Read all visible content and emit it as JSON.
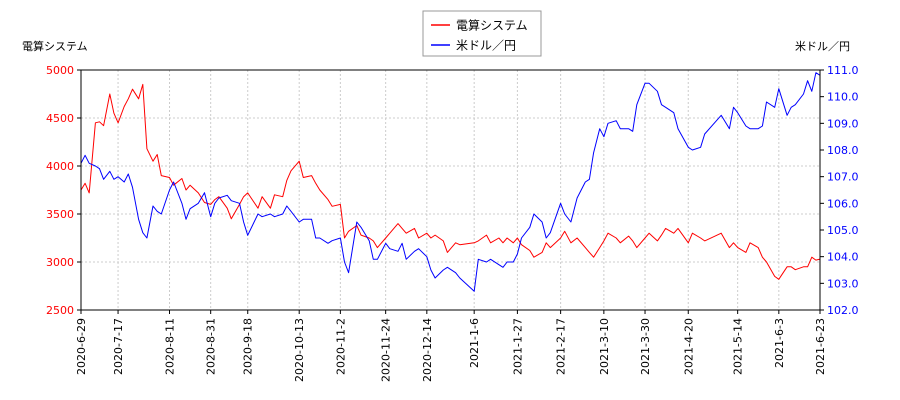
{
  "chart_data": {
    "type": "line",
    "legend_position": "top-center",
    "grid": true,
    "left_axis": {
      "label": "電算システム",
      "range": [
        2500,
        5000
      ],
      "ticks": [
        "2500",
        "3000",
        "3500",
        "4000",
        "4500",
        "5000"
      ],
      "color": "#ff0000"
    },
    "right_axis": {
      "label": "米ドル／円",
      "range": [
        102.0,
        111.0
      ],
      "ticks": [
        "102.0",
        "103.0",
        "104.0",
        "105.0",
        "106.0",
        "107.0",
        "108.0",
        "109.0",
        "110.0",
        "111.0"
      ],
      "color": "#0000ff"
    },
    "x_axis": {
      "range": [
        "2020-6-29",
        "2021-6-23"
      ],
      "ticks": [
        "2020-6-29",
        "2020-7-17",
        "2020-8-11",
        "2020-8-31",
        "2020-9-18",
        "2020-10-13",
        "2020-11-2",
        "2020-11-24",
        "2020-12-14",
        "2021-1-6",
        "2021-1-27",
        "2021-2-17",
        "2021-3-10",
        "2021-3-30",
        "2021-4-20",
        "2021-5-14",
        "2021-6-3",
        "2021-6-23"
      ]
    },
    "series": [
      {
        "name": "電算システム",
        "axis": "left",
        "color": "#ff0000",
        "points": [
          [
            "2020-6-29",
            3750
          ],
          [
            "2020-7-1",
            3820
          ],
          [
            "2020-7-3",
            3720
          ],
          [
            "2020-7-6",
            4450
          ],
          [
            "2020-7-8",
            4460
          ],
          [
            "2020-7-10",
            4420
          ],
          [
            "2020-7-13",
            4750
          ],
          [
            "2020-7-15",
            4550
          ],
          [
            "2020-7-17",
            4450
          ],
          [
            "2020-7-20",
            4620
          ],
          [
            "2020-7-22",
            4700
          ],
          [
            "2020-7-24",
            4800
          ],
          [
            "2020-7-27",
            4700
          ],
          [
            "2020-7-29",
            4850
          ],
          [
            "2020-7-31",
            4180
          ],
          [
            "2020-8-3",
            4050
          ],
          [
            "2020-8-5",
            4120
          ],
          [
            "2020-8-7",
            3900
          ],
          [
            "2020-8-11",
            3880
          ],
          [
            "2020-8-13",
            3800
          ],
          [
            "2020-8-17",
            3870
          ],
          [
            "2020-8-19",
            3750
          ],
          [
            "2020-8-21",
            3800
          ],
          [
            "2020-8-25",
            3720
          ],
          [
            "2020-8-28",
            3620
          ],
          [
            "2020-8-31",
            3600
          ],
          [
            "2020-9-2",
            3650
          ],
          [
            "2020-9-4",
            3680
          ],
          [
            "2020-9-8",
            3560
          ],
          [
            "2020-9-10",
            3450
          ],
          [
            "2020-9-14",
            3600
          ],
          [
            "2020-9-16",
            3680
          ],
          [
            "2020-9-18",
            3720
          ],
          [
            "2020-9-23",
            3560
          ],
          [
            "2020-9-25",
            3680
          ],
          [
            "2020-9-29",
            3560
          ],
          [
            "2020-10-1",
            3700
          ],
          [
            "2020-10-5",
            3680
          ],
          [
            "2020-10-7",
            3850
          ],
          [
            "2020-10-9",
            3950
          ],
          [
            "2020-10-13",
            4050
          ],
          [
            "2020-10-15",
            3880
          ],
          [
            "2020-10-19",
            3900
          ],
          [
            "2020-10-21",
            3820
          ],
          [
            "2020-10-23",
            3750
          ],
          [
            "2020-10-27",
            3650
          ],
          [
            "2020-10-29",
            3580
          ],
          [
            "2020-11-2",
            3600
          ],
          [
            "2020-11-4",
            3250
          ],
          [
            "2020-11-6",
            3320
          ],
          [
            "2020-11-10",
            3380
          ],
          [
            "2020-11-12",
            3280
          ],
          [
            "2020-11-16",
            3250
          ],
          [
            "2020-11-18",
            3220
          ],
          [
            "2020-11-20",
            3150
          ],
          [
            "2020-11-24",
            3250
          ],
          [
            "2020-11-26",
            3300
          ],
          [
            "2020-11-30",
            3400
          ],
          [
            "2020-12-2",
            3350
          ],
          [
            "2020-12-4",
            3300
          ],
          [
            "2020-12-8",
            3350
          ],
          [
            "2020-12-10",
            3250
          ],
          [
            "2020-12-14",
            3300
          ],
          [
            "2020-12-16",
            3250
          ],
          [
            "2020-12-18",
            3280
          ],
          [
            "2020-12-22",
            3220
          ],
          [
            "2020-12-24",
            3100
          ],
          [
            "2020-12-28",
            3200
          ],
          [
            "2020-12-30",
            3180
          ],
          [
            "2021-1-6",
            3200
          ],
          [
            "2021-1-8",
            3220
          ],
          [
            "2021-1-12",
            3280
          ],
          [
            "2021-1-14",
            3200
          ],
          [
            "2021-1-18",
            3250
          ],
          [
            "2021-1-20",
            3200
          ],
          [
            "2021-1-22",
            3250
          ],
          [
            "2021-1-25",
            3200
          ],
          [
            "2021-1-27",
            3250
          ],
          [
            "2021-1-29",
            3180
          ],
          [
            "2021-2-2",
            3120
          ],
          [
            "2021-2-4",
            3050
          ],
          [
            "2021-2-8",
            3100
          ],
          [
            "2021-2-10",
            3200
          ],
          [
            "2021-2-12",
            3150
          ],
          [
            "2021-2-17",
            3250
          ],
          [
            "2021-2-19",
            3320
          ],
          [
            "2021-2-22",
            3200
          ],
          [
            "2021-2-25",
            3250
          ],
          [
            "2021-3-1",
            3150
          ],
          [
            "2021-3-3",
            3100
          ],
          [
            "2021-3-5",
            3050
          ],
          [
            "2021-3-8",
            3150
          ],
          [
            "2021-3-10",
            3220
          ],
          [
            "2021-3-12",
            3300
          ],
          [
            "2021-3-16",
            3250
          ],
          [
            "2021-3-18",
            3200
          ],
          [
            "2021-3-22",
            3270
          ],
          [
            "2021-3-24",
            3220
          ],
          [
            "2021-3-26",
            3150
          ],
          [
            "2021-3-30",
            3250
          ],
          [
            "2021-4-1",
            3300
          ],
          [
            "2021-4-5",
            3220
          ],
          [
            "2021-4-7",
            3280
          ],
          [
            "2021-4-9",
            3350
          ],
          [
            "2021-4-13",
            3300
          ],
          [
            "2021-4-15",
            3350
          ],
          [
            "2021-4-20",
            3200
          ],
          [
            "2021-4-22",
            3300
          ],
          [
            "2021-4-26",
            3250
          ],
          [
            "2021-4-28",
            3220
          ],
          [
            "2021-5-6",
            3300
          ],
          [
            "2021-5-10",
            3150
          ],
          [
            "2021-5-12",
            3200
          ],
          [
            "2021-5-14",
            3150
          ],
          [
            "2021-5-18",
            3100
          ],
          [
            "2021-5-20",
            3200
          ],
          [
            "2021-5-24",
            3150
          ],
          [
            "2021-5-26",
            3050
          ],
          [
            "2021-5-28",
            3000
          ],
          [
            "2021-6-1",
            2850
          ],
          [
            "2021-6-3",
            2820
          ],
          [
            "2021-6-7",
            2950
          ],
          [
            "2021-6-9",
            2950
          ],
          [
            "2021-6-11",
            2920
          ],
          [
            "2021-6-15",
            2950
          ],
          [
            "2021-6-17",
            2950
          ],
          [
            "2021-6-19",
            3050
          ],
          [
            "2021-6-21",
            3020
          ],
          [
            "2021-6-23",
            3030
          ]
        ]
      },
      {
        "name": "米ドル／円",
        "axis": "right",
        "color": "#0000ff",
        "points": [
          [
            "2020-6-29",
            107.5
          ],
          [
            "2020-7-1",
            107.8
          ],
          [
            "2020-7-3",
            107.5
          ],
          [
            "2020-7-6",
            107.4
          ],
          [
            "2020-7-8",
            107.3
          ],
          [
            "2020-7-10",
            106.9
          ],
          [
            "2020-7-13",
            107.2
          ],
          [
            "2020-7-15",
            106.9
          ],
          [
            "2020-7-17",
            107.0
          ],
          [
            "2020-7-20",
            106.8
          ],
          [
            "2020-7-22",
            107.1
          ],
          [
            "2020-7-24",
            106.6
          ],
          [
            "2020-7-27",
            105.4
          ],
          [
            "2020-7-29",
            104.9
          ],
          [
            "2020-7-31",
            104.7
          ],
          [
            "2020-8-3",
            105.9
          ],
          [
            "2020-8-5",
            105.7
          ],
          [
            "2020-8-7",
            105.6
          ],
          [
            "2020-8-11",
            106.5
          ],
          [
            "2020-8-13",
            106.8
          ],
          [
            "2020-8-17",
            106.0
          ],
          [
            "2020-8-19",
            105.4
          ],
          [
            "2020-8-21",
            105.8
          ],
          [
            "2020-8-25",
            106.0
          ],
          [
            "2020-8-28",
            106.4
          ],
          [
            "2020-8-31",
            105.5
          ],
          [
            "2020-9-2",
            106.0
          ],
          [
            "2020-9-4",
            106.2
          ],
          [
            "2020-9-8",
            106.3
          ],
          [
            "2020-9-10",
            106.1
          ],
          [
            "2020-9-14",
            106.0
          ],
          [
            "2020-9-16",
            105.3
          ],
          [
            "2020-9-18",
            104.8
          ],
          [
            "2020-9-23",
            105.6
          ],
          [
            "2020-9-25",
            105.5
          ],
          [
            "2020-9-29",
            105.6
          ],
          [
            "2020-10-1",
            105.5
          ],
          [
            "2020-10-5",
            105.6
          ],
          [
            "2020-10-7",
            105.9
          ],
          [
            "2020-10-9",
            105.7
          ],
          [
            "2020-10-13",
            105.3
          ],
          [
            "2020-10-15",
            105.4
          ],
          [
            "2020-10-19",
            105.4
          ],
          [
            "2020-10-21",
            104.7
          ],
          [
            "2020-10-23",
            104.7
          ],
          [
            "2020-10-27",
            104.5
          ],
          [
            "2020-10-29",
            104.6
          ],
          [
            "2020-11-2",
            104.7
          ],
          [
            "2020-11-4",
            103.8
          ],
          [
            "2020-11-6",
            103.4
          ],
          [
            "2020-11-10",
            105.3
          ],
          [
            "2020-11-12",
            105.1
          ],
          [
            "2020-11-16",
            104.6
          ],
          [
            "2020-11-18",
            103.9
          ],
          [
            "2020-11-20",
            103.9
          ],
          [
            "2020-11-24",
            104.5
          ],
          [
            "2020-11-26",
            104.3
          ],
          [
            "2020-11-30",
            104.2
          ],
          [
            "2020-12-2",
            104.5
          ],
          [
            "2020-12-4",
            103.9
          ],
          [
            "2020-12-8",
            104.2
          ],
          [
            "2020-12-10",
            104.3
          ],
          [
            "2020-12-14",
            104.0
          ],
          [
            "2020-12-16",
            103.5
          ],
          [
            "2020-12-18",
            103.2
          ],
          [
            "2020-12-22",
            103.5
          ],
          [
            "2020-12-24",
            103.6
          ],
          [
            "2020-12-28",
            103.4
          ],
          [
            "2020-12-30",
            103.2
          ],
          [
            "2021-1-6",
            102.7
          ],
          [
            "2021-1-8",
            103.9
          ],
          [
            "2021-1-12",
            103.8
          ],
          [
            "2021-1-14",
            103.9
          ],
          [
            "2021-1-18",
            103.7
          ],
          [
            "2021-1-20",
            103.6
          ],
          [
            "2021-1-22",
            103.8
          ],
          [
            "2021-1-25",
            103.8
          ],
          [
            "2021-1-27",
            104.1
          ],
          [
            "2021-1-29",
            104.7
          ],
          [
            "2021-2-2",
            105.1
          ],
          [
            "2021-2-4",
            105.6
          ],
          [
            "2021-2-8",
            105.3
          ],
          [
            "2021-2-10",
            104.7
          ],
          [
            "2021-2-12",
            104.9
          ],
          [
            "2021-2-17",
            106.0
          ],
          [
            "2021-2-19",
            105.6
          ],
          [
            "2021-2-22",
            105.3
          ],
          [
            "2021-2-25",
            106.2
          ],
          [
            "2021-3-1",
            106.8
          ],
          [
            "2021-3-3",
            106.9
          ],
          [
            "2021-3-5",
            107.9
          ],
          [
            "2021-3-8",
            108.8
          ],
          [
            "2021-3-10",
            108.5
          ],
          [
            "2021-3-12",
            109.0
          ],
          [
            "2021-3-16",
            109.1
          ],
          [
            "2021-3-18",
            108.8
          ],
          [
            "2021-3-22",
            108.8
          ],
          [
            "2021-3-24",
            108.7
          ],
          [
            "2021-3-26",
            109.7
          ],
          [
            "2021-3-30",
            110.5
          ],
          [
            "2021-4-1",
            110.5
          ],
          [
            "2021-4-5",
            110.2
          ],
          [
            "2021-4-7",
            109.7
          ],
          [
            "2021-4-9",
            109.6
          ],
          [
            "2021-4-13",
            109.4
          ],
          [
            "2021-4-15",
            108.8
          ],
          [
            "2021-4-20",
            108.1
          ],
          [
            "2021-4-22",
            108.0
          ],
          [
            "2021-4-26",
            108.1
          ],
          [
            "2021-4-28",
            108.6
          ],
          [
            "2021-5-6",
            109.3
          ],
          [
            "2021-5-10",
            108.8
          ],
          [
            "2021-5-12",
            109.6
          ],
          [
            "2021-5-14",
            109.4
          ],
          [
            "2021-5-18",
            108.9
          ],
          [
            "2021-5-20",
            108.8
          ],
          [
            "2021-5-24",
            108.8
          ],
          [
            "2021-5-26",
            108.9
          ],
          [
            "2021-5-28",
            109.8
          ],
          [
            "2021-6-1",
            109.6
          ],
          [
            "2021-6-3",
            110.3
          ],
          [
            "2021-6-7",
            109.3
          ],
          [
            "2021-6-9",
            109.6
          ],
          [
            "2021-6-11",
            109.7
          ],
          [
            "2021-6-15",
            110.1
          ],
          [
            "2021-6-17",
            110.6
          ],
          [
            "2021-6-19",
            110.2
          ],
          [
            "2021-6-21",
            110.9
          ],
          [
            "2021-6-23",
            110.8
          ]
        ]
      }
    ]
  }
}
